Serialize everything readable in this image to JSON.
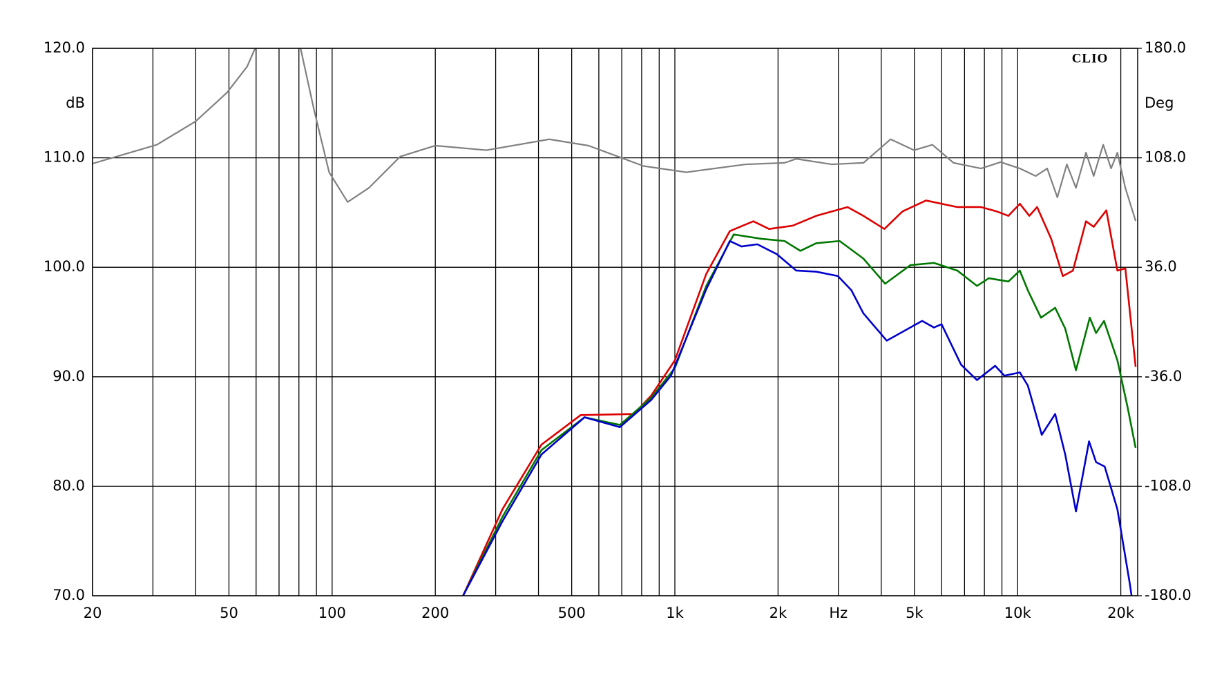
{
  "chart_data": {
    "type": "line",
    "brand": "CLIO",
    "y_label": "dB",
    "y2_label": "Deg",
    "xscale": "log",
    "grid": true,
    "xlim": [
      20,
      22400
    ],
    "xticks": [
      20,
      {
        "value": 30,
        "label": null
      },
      {
        "value": 40,
        "label": null
      },
      50,
      {
        "value": 60,
        "label": null
      },
      {
        "value": 70,
        "label": null
      },
      {
        "value": 80,
        "label": null
      },
      {
        "value": 90,
        "label": null
      },
      100,
      200,
      {
        "value": 300,
        "label": null
      },
      {
        "value": 400,
        "label": null
      },
      500,
      {
        "value": 600,
        "label": null
      },
      {
        "value": 700,
        "label": null
      },
      {
        "value": 800,
        "label": null
      },
      {
        "value": 900,
        "label": null
      },
      {
        "value": 1000,
        "label": "1k"
      },
      {
        "value": 2000,
        "label": "2k"
      },
      {
        "value": 3000,
        "label": "Hz"
      },
      {
        "value": 4000,
        "label": null
      },
      {
        "value": 5000,
        "label": "5k"
      },
      {
        "value": 6000,
        "label": null
      },
      {
        "value": 7000,
        "label": null
      },
      {
        "value": 8000,
        "label": null
      },
      {
        "value": 9000,
        "label": null
      },
      {
        "value": 10000,
        "label": "10k"
      },
      {
        "value": 20000,
        "label": "20k"
      }
    ],
    "ylim": [
      70,
      120
    ],
    "yticks": [
      {
        "value": 70,
        "label": "70.0"
      },
      {
        "value": 80,
        "label": "80.0"
      },
      {
        "value": 90,
        "label": "90.0"
      },
      {
        "value": 100,
        "label": "100.0"
      },
      {
        "value": 110,
        "label": "110.0"
      },
      {
        "value": 120,
        "label": "120.0"
      }
    ],
    "y2lim": [
      -180,
      180
    ],
    "y2ticks": [
      {
        "value": -180,
        "label": "-180.0"
      },
      {
        "value": -108,
        "label": "-108.0"
      },
      {
        "value": -36,
        "label": "-36.0"
      },
      {
        "value": 36,
        "label": "36.0"
      },
      {
        "value": 108,
        "label": "108.0"
      },
      {
        "value": 180,
        "label": "180.0"
      }
    ],
    "series": [
      {
        "color": "#808080",
        "axis": "y2",
        "x": [
          20,
          30.8,
          40,
          49.4,
          56.5,
          59.6,
          70,
          80.9,
          88.5,
          98,
          111,
          128,
          158,
          200,
          282,
          430,
          560,
          810,
          1080,
          1610,
          2090,
          2260,
          2870,
          3550,
          4260,
          4990,
          5640,
          6500,
          7820,
          8920,
          10150,
          11290,
          12200,
          13060,
          13920,
          14800,
          15830,
          16670,
          17770,
          18740,
          19550,
          20620,
          22100
        ],
        "values": [
          104.2,
          116.6,
          132,
          151,
          168,
          180,
          null,
          180,
          139.8,
          98.5,
          78.9,
          88.2,
          108.8,
          116,
          113,
          120.2,
          116,
          102.6,
          98.5,
          103.7,
          104.7,
          107.3,
          103.7,
          104.7,
          120.2,
          113,
          116.6,
          104.7,
          101,
          105.2,
          101,
          96,
          101,
          82,
          103.7,
          88.2,
          111.4,
          96,
          116.6,
          101,
          111.4,
          88.2,
          66.5
        ]
      },
      {
        "color": "#dd0000",
        "x": [
          241,
          314,
          408,
          531,
          760,
          854,
          1000,
          1235,
          1446,
          1694,
          1883,
          2206,
          2585,
          3191,
          3547,
          4085,
          4613,
          5405,
          6670,
          7820,
          8690,
          9400,
          10150,
          10820,
          11400,
          12530,
          13550,
          14500,
          15830,
          16670,
          18150,
          19550,
          20620,
          22100
        ],
        "values": [
          70,
          77.9,
          83.8,
          86.5,
          86.6,
          88.3,
          91.5,
          99.4,
          103.3,
          104.2,
          103.5,
          103.8,
          104.7,
          105.5,
          104.7,
          103.5,
          105.1,
          106.1,
          105.5,
          105.5,
          105.1,
          104.7,
          105.8,
          104.7,
          105.5,
          102.6,
          99.2,
          99.7,
          104.2,
          103.7,
          105.2,
          99.7,
          99.9,
          90.9
        ]
      },
      {
        "color": "#007700",
        "x": [
          241,
          314,
          408,
          545,
          691,
          854,
          1000,
          1235,
          1485,
          1788,
          2090,
          2323,
          2585,
          3025,
          3547,
          4107,
          4866,
          5700,
          6670,
          7610,
          8240,
          9400,
          10150,
          10710,
          11700,
          12870,
          13770,
          14800,
          16240,
          16940,
          17870,
          19550,
          20940,
          22100
        ],
        "values": [
          70,
          77.2,
          83.3,
          86.3,
          85.6,
          88.1,
          90.8,
          98.3,
          103,
          102.6,
          102.4,
          101.5,
          102.2,
          102.4,
          100.8,
          98.5,
          100.2,
          100.4,
          99.7,
          98.3,
          99,
          98.7,
          99.7,
          97.9,
          95.4,
          96.3,
          94.4,
          90.6,
          95.4,
          94,
          95.1,
          91.5,
          87.2,
          83.5
        ]
      },
      {
        "color": "#0000cc",
        "x": [
          241,
          314,
          408,
          545,
          691,
          854,
          974,
          1235,
          1446,
          1565,
          1740,
          1984,
          2260,
          2585,
          2990,
          3274,
          3547,
          4150,
          5265,
          5700,
          6000,
          6840,
          7610,
          8600,
          9150,
          10150,
          10710,
          11760,
          12870,
          13770,
          14800,
          16160,
          16940,
          17950,
          19550,
          21250,
          21500
        ],
        "values": [
          70,
          76.8,
          82.9,
          86.3,
          85.4,
          87.9,
          90.1,
          98,
          102.4,
          101.9,
          102.1,
          101.2,
          99.7,
          99.6,
          99.2,
          97.9,
          95.8,
          93.3,
          95.1,
          94.5,
          94.8,
          91.1,
          89.7,
          91,
          90.1,
          90.4,
          89.2,
          84.7,
          86.6,
          82.9,
          77.7,
          84.1,
          82.2,
          81.8,
          77.9,
          71.1,
          70
        ]
      }
    ]
  }
}
